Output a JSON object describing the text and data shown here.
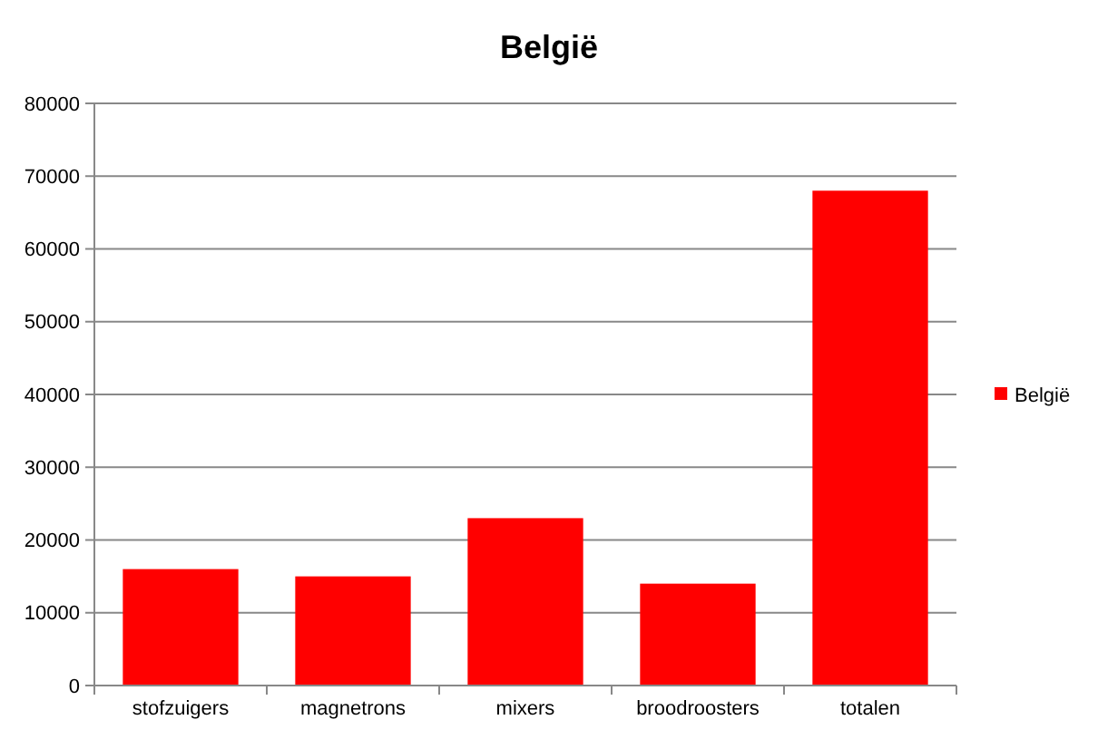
{
  "chart_data": {
    "type": "bar",
    "title": "België",
    "categories": [
      "stofzuigers",
      "magnetrons",
      "mixers",
      "broodroosters",
      "totalen"
    ],
    "series": [
      {
        "name": "België",
        "color": "#ff0000",
        "values": [
          16000,
          15000,
          23000,
          14000,
          68000
        ]
      }
    ],
    "ylim": [
      0,
      80000
    ],
    "yticks": [
      0,
      10000,
      20000,
      30000,
      40000,
      50000,
      60000,
      70000,
      80000
    ],
    "grid": "y",
    "legend": "right"
  }
}
